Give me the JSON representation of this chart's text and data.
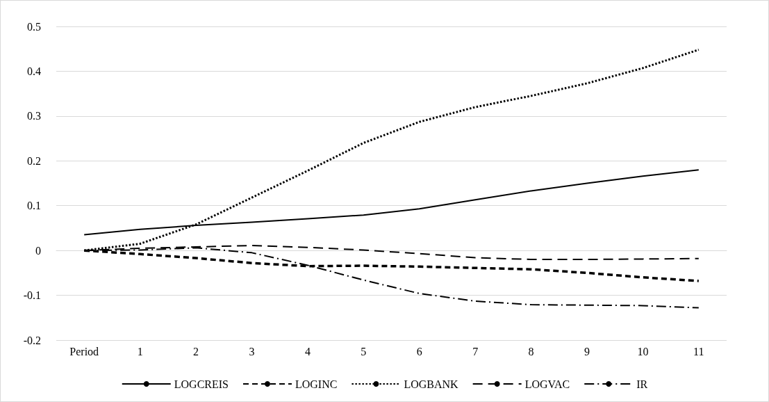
{
  "chart_data": {
    "type": "line",
    "categories": [
      "Period",
      "1",
      "2",
      "3",
      "4",
      "5",
      "6",
      "7",
      "8",
      "9",
      "10",
      "11"
    ],
    "series": [
      {
        "name": "LOGCREIS",
        "color": "#000000",
        "line_style": "solid",
        "values": [
          0.035,
          0.047,
          0.056,
          0.063,
          0.071,
          0.079,
          0.093,
          0.113,
          0.133,
          0.15,
          0.166,
          0.18
        ]
      },
      {
        "name": "LOGINC",
        "color": "#000000",
        "line_style": "dashed",
        "values": [
          0,
          -0.008,
          -0.017,
          -0.028,
          -0.035,
          -0.034,
          -0.036,
          -0.039,
          -0.042,
          -0.05,
          -0.06,
          -0.068
        ]
      },
      {
        "name": "LOGBANK",
        "color": "#000000",
        "line_style": "dotted",
        "values": [
          0,
          0.015,
          0.058,
          0.118,
          0.178,
          0.24,
          0.287,
          0.32,
          0.345,
          0.373,
          0.407,
          0.448
        ]
      },
      {
        "name": "LOGVAC",
        "color": "#000000",
        "line_style": "longdash",
        "values": [
          0,
          0.005,
          0.008,
          0.011,
          0.007,
          0.001,
          -0.007,
          -0.016,
          -0.02,
          -0.02,
          -0.019,
          -0.018
        ]
      },
      {
        "name": "IR",
        "color": "#000000",
        "line_style": "dashdot",
        "values": [
          0,
          0.001,
          0.006,
          -0.005,
          -0.033,
          -0.066,
          -0.096,
          -0.113,
          -0.121,
          -0.122,
          -0.123,
          -0.128
        ]
      }
    ],
    "ylim": [
      -0.2,
      0.5
    ],
    "yticks": [
      -0.2,
      -0.1,
      0,
      0.1,
      0.2,
      0.3,
      0.4,
      0.5
    ],
    "grid": "y",
    "legend": "bottom",
    "marker": "none"
  }
}
